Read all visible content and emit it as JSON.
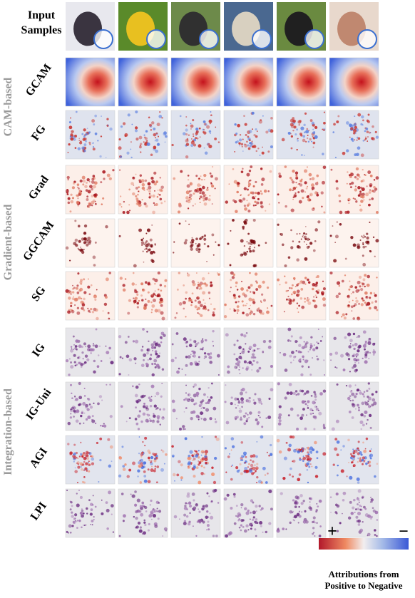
{
  "input_label": [
    "Input",
    "Samples"
  ],
  "groups": [
    "CAM-based",
    "Gradient-based",
    "Integration-based"
  ],
  "rows": [
    "GCAM",
    "FG",
    "Grad",
    "GGCAM",
    "SG",
    "IG",
    "IG-Uni",
    "AGI",
    "LPI"
  ],
  "legend": {
    "plus": "+",
    "minus": "−",
    "caption": [
      "Attributions from",
      "Positive to Negative"
    ]
  }
}
